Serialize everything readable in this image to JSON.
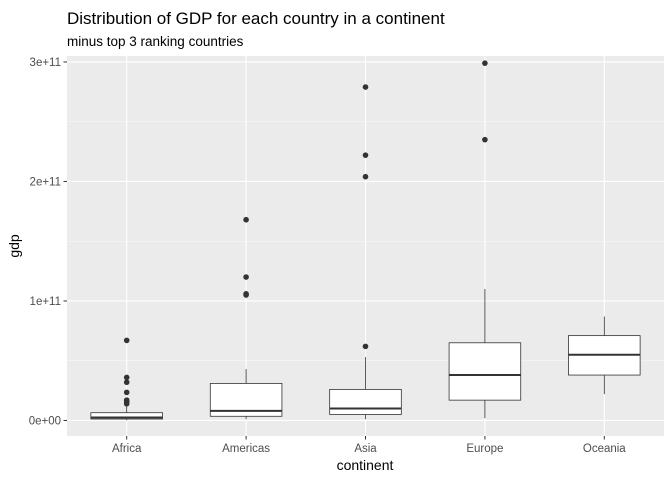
{
  "chart_data": {
    "type": "box",
    "title": "Distribution of GDP for each country in a continent",
    "subtitle": "minus top 3 ranking countries",
    "xlabel": "continent",
    "ylabel": "gdp",
    "ylim": [
      -13000000000.0,
      305000000000.0
    ],
    "yticks": [
      {
        "value": 0,
        "label": "0e+00"
      },
      {
        "value": 100000000000.0,
        "label": "1e+11"
      },
      {
        "value": 200000000000.0,
        "label": "2e+11"
      },
      {
        "value": 300000000000.0,
        "label": "3e+11"
      }
    ],
    "grid": true,
    "categories": [
      "Africa",
      "Americas",
      "Asia",
      "Europe",
      "Oceania"
    ],
    "boxes": [
      {
        "category": "Africa",
        "whisker_low": 200000000.0,
        "q1": 1200000000.0,
        "median": 2500000000.0,
        "q3": 6500000000.0,
        "whisker_high": 12000000000.0,
        "outliers": [
          14000000000.0,
          15500000000.0,
          17000000000.0,
          23500000000.0,
          32000000000.0,
          36000000000.0,
          67000000000.0
        ]
      },
      {
        "category": "Americas",
        "whisker_low": 1000000000.0,
        "q1": 3500000000.0,
        "median": 8000000000.0,
        "q3": 31000000000.0,
        "whisker_high": 43000000000.0,
        "outliers": [
          105000000000.0,
          106000000000.0,
          120000000000.0,
          168000000000.0
        ]
      },
      {
        "category": "Asia",
        "whisker_low": 1000000000.0,
        "q1": 5000000000.0,
        "median": 10000000000.0,
        "q3": 26000000000.0,
        "whisker_high": 53000000000.0,
        "outliers": [
          62000000000.0,
          204000000000.0,
          222000000000.0,
          279000000000.0
        ]
      },
      {
        "category": "Europe",
        "whisker_low": 2000000000.0,
        "q1": 17000000000.0,
        "median": 38000000000.0,
        "q3": 65000000000.0,
        "whisker_high": 110000000000.0,
        "outliers": [
          235000000000.0,
          299000000000.0
        ]
      },
      {
        "category": "Oceania",
        "whisker_low": 22000000000.0,
        "q1": 38000000000.0,
        "median": 55000000000.0,
        "q3": 71000000000.0,
        "whisker_high": 87000000000.0,
        "outliers": []
      }
    ],
    "colors": {
      "panel": "#ebebeb",
      "grid_major": "#ffffff",
      "box_fill": "#ffffff",
      "box_stroke": "#333333",
      "point": "#333333"
    }
  }
}
